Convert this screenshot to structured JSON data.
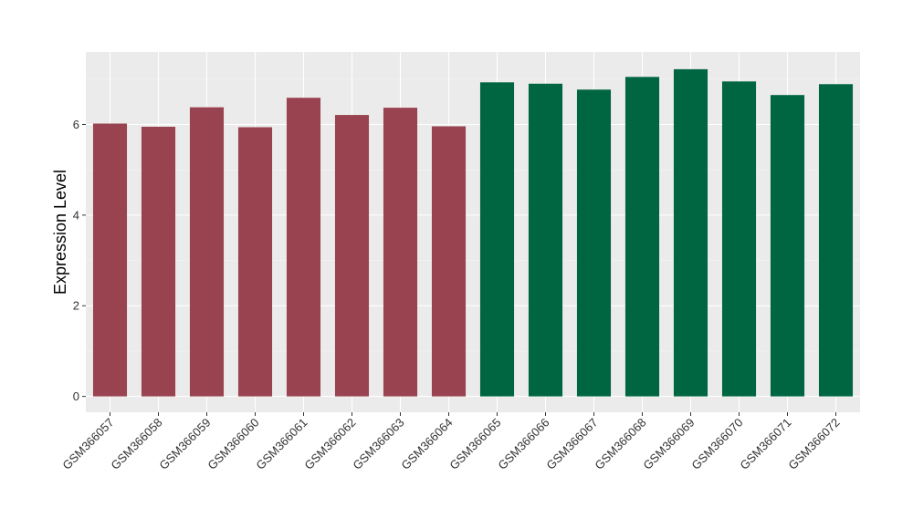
{
  "chart_data": {
    "type": "bar",
    "xlabel": "",
    "ylabel": "Expression Level",
    "ylim": [
      -0.35,
      7.6
    ],
    "yticks": [
      0,
      2,
      4,
      6
    ],
    "grid": true,
    "background": "#EBEBEB",
    "categories": [
      "GSM366057",
      "GSM366058",
      "GSM366059",
      "GSM366060",
      "GSM366061",
      "GSM366062",
      "GSM366063",
      "GSM366064",
      "GSM366065",
      "GSM366066",
      "GSM366067",
      "GSM366068",
      "GSM366069",
      "GSM366070",
      "GSM366071",
      "GSM366072"
    ],
    "values": [
      6.02,
      5.95,
      6.38,
      5.94,
      6.59,
      6.21,
      6.37,
      5.96,
      6.93,
      6.9,
      6.77,
      7.05,
      7.22,
      6.95,
      6.65,
      6.89
    ],
    "bar_colors": [
      "#9A4350",
      "#9A4350",
      "#9A4350",
      "#9A4350",
      "#9A4350",
      "#9A4350",
      "#9A4350",
      "#9A4350",
      "#006642",
      "#006642",
      "#006642",
      "#006642",
      "#006642",
      "#006642",
      "#006642",
      "#006642"
    ]
  }
}
